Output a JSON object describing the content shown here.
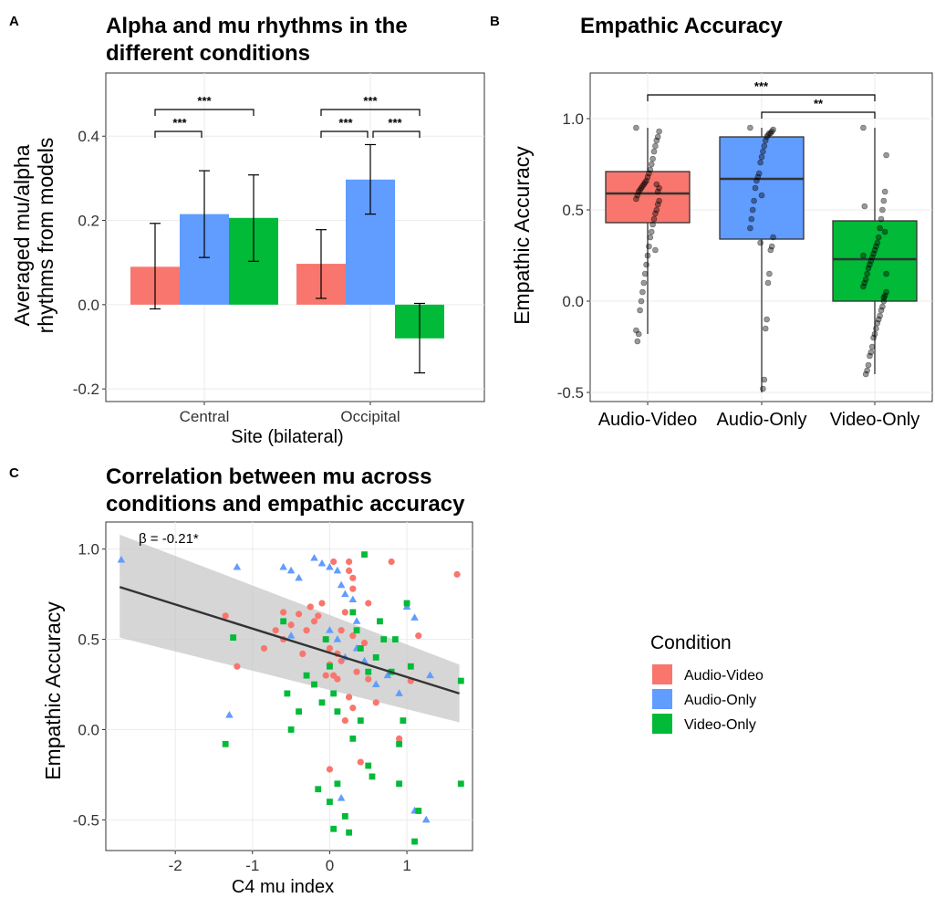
{
  "colors": {
    "audio_video": "#F8766D",
    "audio_only": "#619CFF",
    "video_only": "#00BA38",
    "grid": "#EBEBEB",
    "band": "#C8C8C8",
    "line": "#333333"
  },
  "panels": {
    "a": {
      "label": "A",
      "title_line1": "Alpha and mu rhythms in the",
      "title_line2": "different conditions",
      "ylabel_line1": "Averaged mu/alpha",
      "ylabel_line2": "rhythms from models",
      "xlabel": "Site (bilateral)"
    },
    "b": {
      "label": "B",
      "title": "Empathic Accuracy",
      "ylabel": "Empathic Accuracy"
    },
    "c": {
      "label": "C",
      "title_line1": "Correlation between mu across",
      "title_line2": "conditions and empathic accuracy",
      "ylabel": "Empathic Accuracy",
      "xlabel": "C4 mu index",
      "annotation": "β = -0.21*"
    }
  },
  "legend": {
    "title": "Condition",
    "items": [
      {
        "label": "Audio-Video",
        "color": "#F8766D"
      },
      {
        "label": "Audio-Only",
        "color": "#619CFF"
      },
      {
        "label": "Video-Only",
        "color": "#00BA38"
      }
    ]
  },
  "chart_data": [
    {
      "type": "bar",
      "categories": [
        "Central",
        "Occipital"
      ],
      "ylim": [
        -0.23,
        0.55
      ],
      "yticks": [
        -0.2,
        0.0,
        0.2,
        0.4
      ],
      "ytick_labels": [
        "-0.2",
        "0.0",
        "0.2",
        "0.4"
      ],
      "series": [
        {
          "values": [
            0.09,
            0.097
          ],
          "err_low": [
            -0.01,
            0.015
          ],
          "err_high": [
            0.193,
            0.178
          ]
        },
        {
          "values": [
            0.215,
            0.297
          ],
          "err_low": [
            0.112,
            0.215
          ],
          "err_high": [
            0.318,
            0.38
          ]
        },
        {
          "values": [
            0.206,
            -0.08
          ],
          "err_low": [
            0.103,
            -0.162
          ],
          "err_high": [
            0.308,
            0.003
          ]
        }
      ],
      "significance": [
        {
          "group": 0,
          "from": 0,
          "to": 1,
          "label": "***"
        },
        {
          "group": 0,
          "from": 0,
          "to": 2,
          "label": "***"
        },
        {
          "group": 1,
          "from": 0,
          "to": 1,
          "label": "***"
        },
        {
          "group": 1,
          "from": 1,
          "to": 2,
          "label": "***"
        },
        {
          "group": 1,
          "from": 0,
          "to": 2,
          "label": "***"
        }
      ]
    },
    {
      "type": "box",
      "categories": [
        "Audio-Video",
        "Audio-Only",
        "Video-Only"
      ],
      "ylim": [
        -0.55,
        1.25
      ],
      "yticks": [
        -0.5,
        0.0,
        0.5,
        1.0
      ],
      "ytick_labels": [
        "-0.5",
        "0.0",
        "0.5",
        "1.0"
      ],
      "boxes": [
        {
          "whisker_low": -0.18,
          "q1": 0.43,
          "median": 0.59,
          "q3": 0.71,
          "whisker_high": 0.95
        },
        {
          "whisker_low": -0.5,
          "q1": 0.34,
          "median": 0.67,
          "q3": 0.9,
          "whisker_high": 0.95
        },
        {
          "whisker_low": -0.4,
          "q1": 0.0,
          "median": 0.23,
          "q3": 0.44,
          "whisker_high": 0.95
        }
      ],
      "points": [
        [
          0.95,
          0.93,
          0.9,
          0.88,
          0.85,
          0.82,
          0.78,
          0.75,
          0.72,
          0.7,
          0.68,
          0.66,
          0.65,
          0.64,
          0.63,
          0.62,
          0.61,
          0.6,
          0.58,
          0.56,
          0.55,
          0.53,
          0.5,
          0.48,
          0.45,
          0.42,
          0.38,
          0.35,
          0.3,
          0.25,
          0.2,
          0.15,
          0.1,
          0.05,
          0.0,
          -0.05,
          -0.18,
          -0.22,
          -0.16,
          0.62,
          0.6,
          0.64,
          0.28
        ],
        [
          0.95,
          0.94,
          0.93,
          0.92,
          0.92,
          0.91,
          0.9,
          0.88,
          0.85,
          0.82,
          0.79,
          0.76,
          0.7,
          0.68,
          0.66,
          0.62,
          0.55,
          0.5,
          0.45,
          0.4,
          0.35,
          0.3,
          0.28,
          0.15,
          0.1,
          -0.1,
          -0.15,
          -0.43,
          -0.48,
          0.58,
          0.32
        ],
        [
          0.95,
          0.8,
          0.6,
          0.55,
          0.5,
          0.45,
          0.4,
          0.35,
          0.32,
          0.3,
          0.28,
          0.26,
          0.24,
          0.22,
          0.2,
          0.18,
          0.15,
          0.12,
          0.1,
          0.08,
          0.05,
          0.03,
          0.0,
          -0.03,
          -0.05,
          -0.08,
          -0.1,
          -0.12,
          -0.15,
          -0.18,
          -0.2,
          -0.25,
          -0.28,
          -0.3,
          -0.35,
          -0.38,
          -0.4,
          0.52,
          0.25,
          0.15,
          0.38,
          0.02
        ]
      ],
      "significance": [
        {
          "from": 1,
          "to": 2,
          "label": "**"
        },
        {
          "from": 0,
          "to": 2,
          "label": "***"
        }
      ]
    },
    {
      "type": "scatter",
      "xlim": [
        -2.9,
        1.85
      ],
      "ylim": [
        -0.67,
        1.15
      ],
      "xticks": [
        -2,
        -1,
        0,
        1
      ],
      "xtick_labels": [
        "-2",
        "-1",
        "0",
        "1"
      ],
      "yticks": [
        -0.5,
        0.0,
        0.5,
        1.0
      ],
      "ytick_labels": [
        "-0.5",
        "0.0",
        "0.5",
        "1.0"
      ],
      "regression": {
        "x": [
          -2.72,
          1.68
        ],
        "y": [
          0.79,
          0.2
        ],
        "ci_low": [
          0.51,
          0.04
        ],
        "ci_high": [
          1.08,
          0.36
        ]
      },
      "series": [
        {
          "marker": "circle",
          "points": [
            [
              -1.35,
              0.63
            ],
            [
              -1.2,
              0.35
            ],
            [
              -0.85,
              0.45
            ],
            [
              -0.7,
              0.55
            ],
            [
              -0.6,
              0.5
            ],
            [
              -0.5,
              0.58
            ],
            [
              -0.4,
              0.64
            ],
            [
              -0.35,
              0.42
            ],
            [
              -0.3,
              0.55
            ],
            [
              -0.25,
              0.68
            ],
            [
              -0.2,
              0.6
            ],
            [
              -0.15,
              0.63
            ],
            [
              -0.1,
              0.7
            ],
            [
              -0.05,
              0.5
            ],
            [
              0.0,
              0.45
            ],
            [
              0.05,
              0.3
            ],
            [
              0.1,
              0.42
            ],
            [
              0.15,
              0.55
            ],
            [
              0.2,
              0.65
            ],
            [
              0.25,
              0.88
            ],
            [
              0.3,
              0.78
            ],
            [
              0.05,
              0.93
            ],
            [
              0.25,
              0.93
            ],
            [
              0.3,
              0.84
            ],
            [
              0.0,
              0.36
            ],
            [
              0.1,
              0.28
            ],
            [
              0.25,
              0.18
            ],
            [
              0.3,
              0.12
            ],
            [
              0.2,
              0.05
            ],
            [
              0.35,
              0.32
            ],
            [
              0.4,
              -0.18
            ],
            [
              0.5,
              0.28
            ],
            [
              0.6,
              0.15
            ],
            [
              0.8,
              0.93
            ],
            [
              0.9,
              -0.05
            ],
            [
              1.05,
              0.27
            ],
            [
              1.15,
              0.52
            ],
            [
              1.65,
              0.86
            ],
            [
              0.0,
              -0.22
            ],
            [
              -0.05,
              0.3
            ],
            [
              0.45,
              0.48
            ],
            [
              0.3,
              0.52
            ],
            [
              -0.6,
              0.65
            ],
            [
              0.15,
              0.38
            ],
            [
              0.5,
              0.7
            ]
          ]
        },
        {
          "marker": "triangle",
          "points": [
            [
              -2.7,
              0.94
            ],
            [
              -1.2,
              0.9
            ],
            [
              -1.3,
              0.08
            ],
            [
              -0.6,
              0.9
            ],
            [
              -0.5,
              0.88
            ],
            [
              -0.4,
              0.84
            ],
            [
              -0.2,
              0.95
            ],
            [
              -0.1,
              0.92
            ],
            [
              0.0,
              0.9
            ],
            [
              0.1,
              0.88
            ],
            [
              0.15,
              0.8
            ],
            [
              0.2,
              0.75
            ],
            [
              0.3,
              0.72
            ],
            [
              0.35,
              0.6
            ],
            [
              0.1,
              0.5
            ],
            [
              0.2,
              0.4
            ],
            [
              0.0,
              0.55
            ],
            [
              0.15,
              -0.38
            ],
            [
              0.75,
              0.3
            ],
            [
              0.9,
              0.2
            ],
            [
              1.0,
              0.68
            ],
            [
              1.1,
              0.62
            ],
            [
              1.1,
              -0.45
            ],
            [
              1.25,
              -0.5
            ],
            [
              1.3,
              0.3
            ],
            [
              0.35,
              0.45
            ],
            [
              0.45,
              0.38
            ],
            [
              -0.5,
              0.52
            ],
            [
              0.6,
              0.25
            ]
          ]
        },
        {
          "marker": "square",
          "points": [
            [
              -1.25,
              0.51
            ],
            [
              -1.35,
              -0.08
            ],
            [
              -0.6,
              0.6
            ],
            [
              -0.55,
              0.2
            ],
            [
              -0.5,
              0.0
            ],
            [
              -0.4,
              0.1
            ],
            [
              -0.3,
              0.3
            ],
            [
              -0.2,
              0.25
            ],
            [
              -0.1,
              0.15
            ],
            [
              -0.05,
              0.5
            ],
            [
              0.0,
              0.35
            ],
            [
              0.05,
              0.2
            ],
            [
              0.1,
              0.1
            ],
            [
              0.0,
              -0.4
            ],
            [
              0.05,
              -0.55
            ],
            [
              0.2,
              -0.48
            ],
            [
              0.25,
              -0.57
            ],
            [
              0.3,
              0.65
            ],
            [
              0.35,
              0.55
            ],
            [
              0.4,
              0.45
            ],
            [
              0.45,
              0.97
            ],
            [
              0.5,
              -0.2
            ],
            [
              0.55,
              -0.26
            ],
            [
              0.6,
              0.4
            ],
            [
              0.65,
              0.6
            ],
            [
              0.7,
              0.5
            ],
            [
              0.8,
              0.32
            ],
            [
              0.85,
              0.5
            ],
            [
              0.9,
              -0.08
            ],
            [
              0.95,
              0.05
            ],
            [
              0.9,
              -0.3
            ],
            [
              1.0,
              0.7
            ],
            [
              1.05,
              0.35
            ],
            [
              1.1,
              -0.62
            ],
            [
              1.15,
              -0.45
            ],
            [
              1.7,
              0.27
            ],
            [
              1.7,
              -0.3
            ],
            [
              -0.15,
              -0.33
            ],
            [
              0.1,
              -0.3
            ],
            [
              0.3,
              -0.05
            ],
            [
              0.4,
              0.05
            ],
            [
              0.5,
              0.32
            ]
          ]
        }
      ]
    }
  ]
}
